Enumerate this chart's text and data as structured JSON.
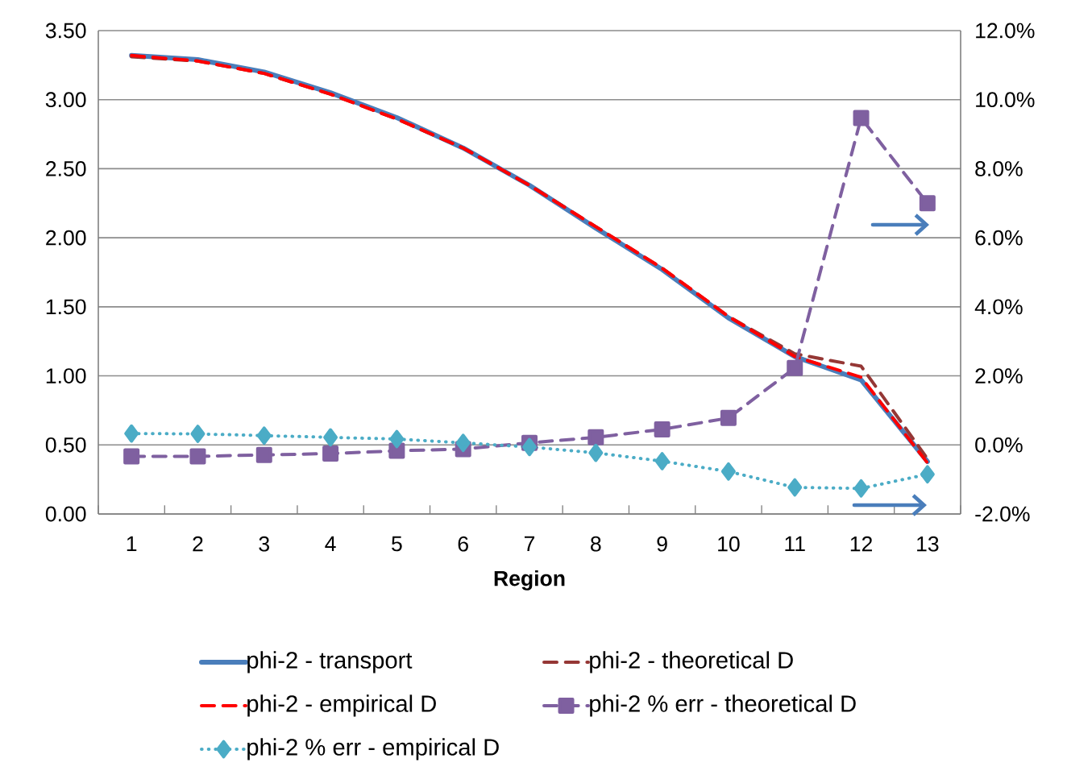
{
  "chart_data": {
    "type": "line",
    "xlabel": "Region",
    "categories": [
      "1",
      "2",
      "3",
      "4",
      "5",
      "6",
      "7",
      "8",
      "9",
      "10",
      "11",
      "12",
      "13"
    ],
    "series": [
      {
        "name": "phi-2 - transport",
        "color": "#4a7ebb",
        "line_style": "solid",
        "marker": "none",
        "values": [
          3.32,
          3.29,
          3.2,
          3.05,
          2.87,
          2.65,
          2.38,
          2.07,
          1.77,
          1.42,
          1.14,
          0.97,
          0.38
        ]
      },
      {
        "name": "phi-2 - theoretical D",
        "color": "#953735",
        "line_style": "dashed",
        "marker": "none",
        "values": [
          3.31,
          3.28,
          3.19,
          3.04,
          2.86,
          2.65,
          2.38,
          2.08,
          1.78,
          1.43,
          1.16,
          1.07,
          0.4
        ]
      },
      {
        "name": "phi-2 - empirical D",
        "color": "#ff0000",
        "line_style": "dashed",
        "marker": "none",
        "values": [
          3.32,
          3.28,
          3.19,
          3.04,
          2.86,
          2.65,
          2.38,
          2.08,
          1.78,
          1.43,
          1.14,
          0.99,
          0.37
        ]
      },
      {
        "name": "phi-2 % err - theoretical D",
        "color": "#7f60a0",
        "line_style": "dashed",
        "marker": "square",
        "axis": "y2",
        "values": [
          -0.33,
          -0.33,
          -0.29,
          -0.25,
          -0.17,
          -0.12,
          0.06,
          0.22,
          0.45,
          0.78,
          2.23,
          9.47,
          7.0
        ]
      },
      {
        "name": "phi-2 % err - empirical D",
        "color": "#4bacc6",
        "line_style": "dotted",
        "marker": "diamond",
        "axis": "y2",
        "values": [
          0.33,
          0.32,
          0.27,
          0.22,
          0.17,
          0.06,
          -0.06,
          -0.23,
          -0.47,
          -0.77,
          -1.23,
          -1.26,
          -0.85
        ]
      }
    ],
    "ylim": [
      0,
      3.5
    ],
    "yticks": [
      {
        "value": 0,
        "label": "0.00"
      },
      {
        "value": 0.5,
        "label": "0.50"
      },
      {
        "value": 1,
        "label": "1.00"
      },
      {
        "value": 1.5,
        "label": "1.50"
      },
      {
        "value": 2,
        "label": "2.00"
      },
      {
        "value": 2.5,
        "label": "2.50"
      },
      {
        "value": 3,
        "label": "3.00"
      },
      {
        "value": 3.5,
        "label": "3.50"
      }
    ],
    "y2lim": [
      -2,
      12
    ],
    "y2ticks": [
      {
        "value": -2,
        "label": "-2.0%"
      },
      {
        "value": 0,
        "label": "0.0%"
      },
      {
        "value": 2,
        "label": "2.0%"
      },
      {
        "value": 4,
        "label": "4.0%"
      },
      {
        "value": 6,
        "label": "6.0%"
      },
      {
        "value": 8,
        "label": "8.0%"
      },
      {
        "value": 10,
        "label": "10.0%"
      },
      {
        "value": 12,
        "label": "12.0%"
      }
    ],
    "grid": "y",
    "legend": "bottom"
  }
}
